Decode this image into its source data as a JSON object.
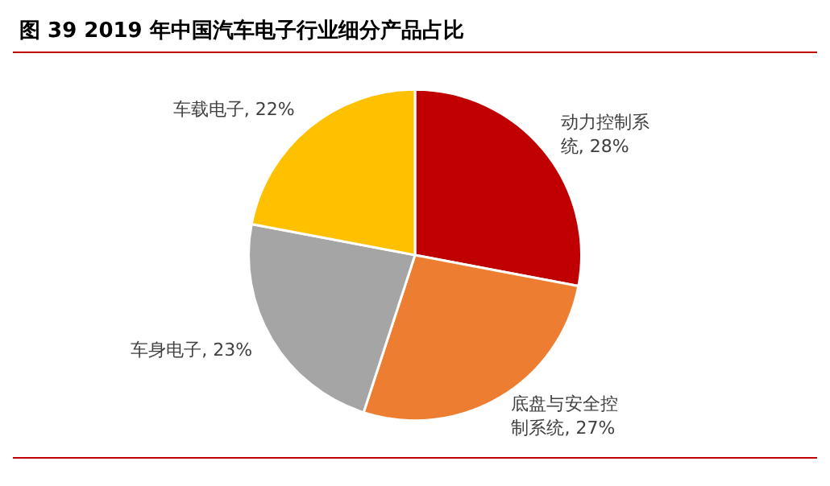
{
  "chart_data": {
    "type": "pie",
    "title": "图 39  2019 年中国汽车电子行业细分产品占比",
    "categories": [
      "动力控制系统",
      "底盘与安全控制系统",
      "车身电子",
      "车载电子"
    ],
    "values": [
      28,
      27,
      23,
      22
    ],
    "value_labels": [
      "28%",
      "27%",
      "23%",
      "22%"
    ],
    "colors": [
      "#c00000",
      "#ed7d31",
      "#a5a5a5",
      "#ffc000"
    ],
    "legend": false
  }
}
